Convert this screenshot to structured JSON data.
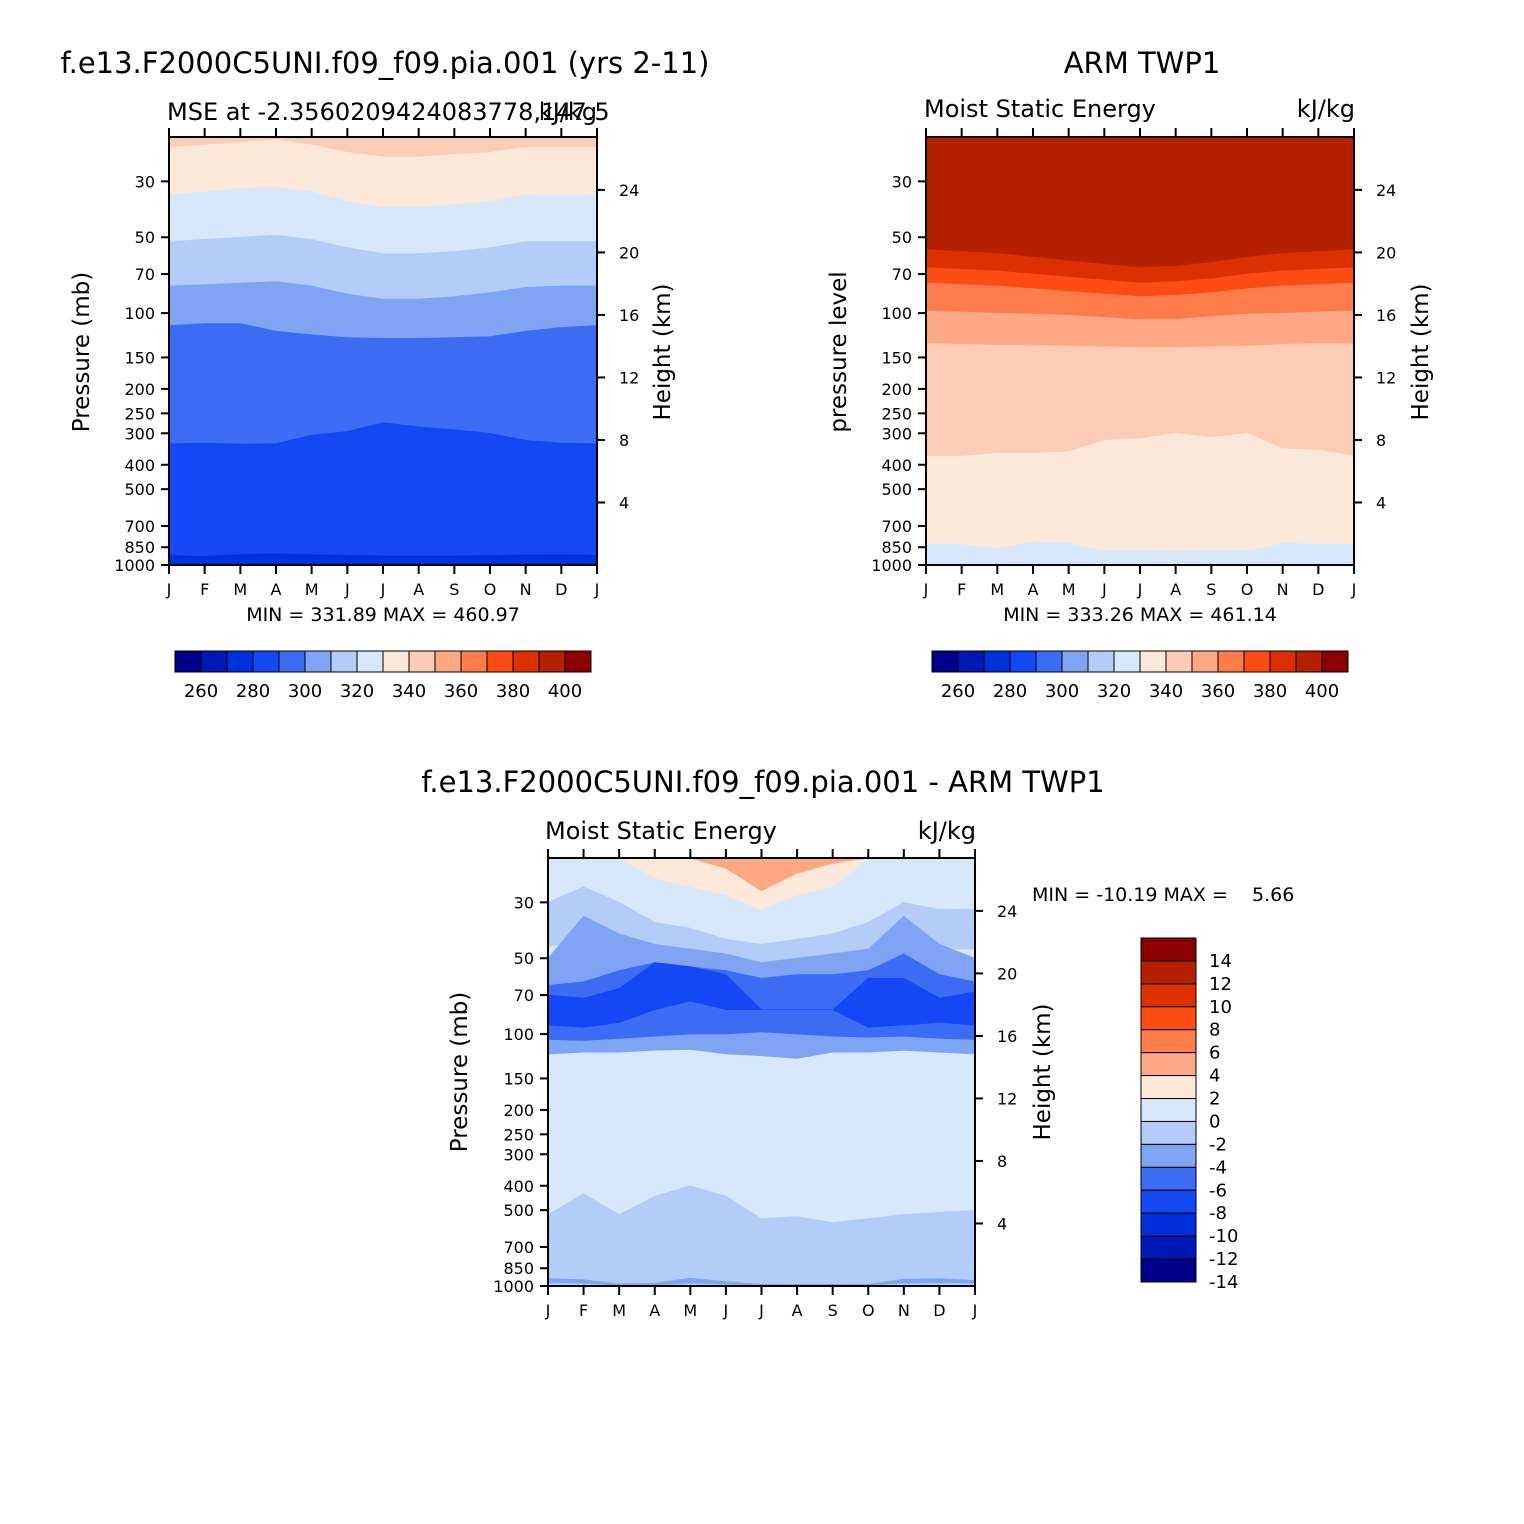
{
  "colors": {
    "abs": [
      "#00008b",
      "#0018b4",
      "#0030dc",
      "#1448f4",
      "#3c6cf4",
      "#80a4f4",
      "#b4ccf8",
      "#d8e8fc",
      "#fce8d8",
      "#fcccb4",
      "#fca884",
      "#fc7c4c",
      "#fc4c14",
      "#dc3000",
      "#b42000",
      "#8c0000"
    ],
    "diff": [
      "#00008b",
      "#0018b4",
      "#0030dc",
      "#1448f4",
      "#3c6cf4",
      "#80a4f4",
      "#b4ccf8",
      "#d8e8fc",
      "#fce8d8",
      "#fca884",
      "#fc7c4c",
      "#fc4c14",
      "#dc3000",
      "#b42000",
      "#8c0000"
    ]
  },
  "chart_data": [
    {
      "id": "model",
      "type": "heatmap",
      "title": "f.e13.F2000C5UNI.f09_f09.pia.001 (yrs 2-11)",
      "subtitle_left": "MSE at -2.3560209424083778,147.5",
      "subtitle_right": "kJ/kg",
      "ylabel": "Pressure (mb)",
      "y2label": "Height (km)",
      "months": [
        "J",
        "F",
        "M",
        "A",
        "M",
        "J",
        "J",
        "A",
        "S",
        "O",
        "N",
        "D",
        "J"
      ],
      "pressure_ticks": [
        "30",
        "50",
        "70",
        "100",
        "150",
        "200",
        "250",
        "300",
        "400",
        "500",
        "700",
        "850",
        "1000"
      ],
      "height_ticks": [
        "24",
        "20",
        "16",
        "12",
        "8",
        "4"
      ],
      "minmax": "MIN = 331.89  MAX = 460.97",
      "colorbar_labels": [
        "260",
        "280",
        "300",
        "320",
        "340",
        "360",
        "380",
        "400"
      ],
      "boundaries_hpa": [
        [
          1.5,
          1.5,
          1.4,
          1.3,
          1.4,
          1.6,
          1.8,
          1.8,
          1.7,
          1.6,
          1.5,
          1.5,
          1.5
        ],
        [
          2.5,
          2.5,
          2.4,
          2.3,
          2.4,
          2.6,
          2.8,
          2.8,
          2.7,
          2.6,
          2.5,
          2.5,
          2.5
        ],
        [
          3.7,
          3.7,
          3.6,
          3.5,
          3.6,
          3.8,
          4.0,
          4.0,
          3.9,
          3.8,
          3.7,
          3.7,
          3.7
        ],
        [
          5.5,
          5.5,
          5.4,
          5.3,
          5.4,
          5.6,
          5.8,
          5.8,
          5.7,
          5.6,
          5.5,
          5.5,
          5.5
        ],
        [
          8.5,
          8.4,
          8.3,
          8.2,
          8.4,
          8.7,
          9.0,
          9.0,
          8.9,
          8.7,
          8.5,
          8.5,
          8.5
        ],
        [
          14,
          13.8,
          13.6,
          13.4,
          13.8,
          14.5,
          15,
          15,
          14.8,
          14.5,
          14,
          14,
          14
        ],
        [
          22,
          21.5,
          21,
          20.5,
          21.5,
          23,
          24,
          24,
          23.5,
          23,
          22,
          22,
          22
        ],
        [
          34,
          33,
          32,
          31.5,
          33,
          36,
          38,
          38,
          37,
          36,
          34,
          34,
          34
        ],
        [
          52,
          51,
          50,
          49,
          51,
          55,
          58,
          58,
          57,
          55,
          52,
          52,
          52
        ],
        [
          78,
          77,
          76,
          75,
          78,
          84,
          88,
          88,
          86,
          83,
          79,
          78,
          78
        ],
        [
          112,
          110,
          110,
          118,
          122,
          125,
          126,
          126,
          125,
          124,
          118,
          114,
          112
        ],
        [
          330,
          328,
          331,
          330,
          305,
          295,
          272,
          283,
          290,
          300,
          320,
          328,
          330
        ],
        [
          915,
          925,
          908,
          903,
          910,
          915,
          920,
          920,
          920,
          918,
          912,
          910,
          915
        ]
      ],
      "boundary_colors": [
        10,
        14,
        13,
        12,
        11,
        10,
        9,
        8,
        7,
        6,
        5,
        4,
        3,
        2
      ]
    },
    {
      "id": "obs",
      "type": "heatmap",
      "title": "ARM TWP1",
      "subtitle_left": "Moist Static Energy",
      "subtitle_right": "kJ/kg",
      "ylabel": "pressure level",
      "y2label": "Height (km)",
      "months": [
        "J",
        "F",
        "M",
        "A",
        "M",
        "J",
        "J",
        "A",
        "S",
        "O",
        "N",
        "D",
        "J"
      ],
      "pressure_ticks": [
        "30",
        "50",
        "70",
        "100",
        "150",
        "200",
        "250",
        "300",
        "400",
        "500",
        "700",
        "850",
        "1000"
      ],
      "height_ticks": [
        "24",
        "20",
        "16",
        "12",
        "8",
        "4"
      ],
      "minmax": "MIN = 333.26  MAX = 461.14",
      "colorbar_labels": [
        "260",
        "280",
        "300",
        "320",
        "340",
        "360",
        "380",
        "400"
      ],
      "boundaries_hpa": [
        [
          56,
          57,
          58,
          60,
          62,
          64,
          66,
          65,
          63,
          60,
          58,
          57,
          56
        ],
        [
          66,
          67,
          68,
          70,
          72,
          74,
          76,
          75,
          73,
          70,
          68,
          67,
          66
        ],
        [
          76,
          77,
          78,
          80,
          82,
          84,
          86,
          85,
          83,
          80,
          78,
          77,
          76
        ],
        [
          98,
          99,
          100,
          101,
          102,
          104,
          106,
          106,
          103,
          101,
          100,
          99,
          98
        ],
        [
          132,
          133,
          134,
          134,
          135,
          136,
          137,
          137,
          136,
          135,
          133,
          132,
          132
        ],
        [
          370,
          370,
          360,
          360,
          355,
          320,
          315,
          300,
          312,
          300,
          345,
          350,
          370
        ],
        [
          825,
          830,
          860,
          810,
          820,
          880,
          880,
          885,
          880,
          880,
          820,
          825,
          825
        ]
      ],
      "boundary_colors": [
        14,
        13,
        12,
        11,
        10,
        9,
        8,
        7
      ]
    },
    {
      "id": "diff",
      "type": "heatmap",
      "title": "f.e13.F2000C5UNI.f09_f09.pia.001 - ARM TWP1",
      "subtitle_left": "Moist Static Energy",
      "subtitle_right": "kJ/kg",
      "ylabel": "Pressure (mb)",
      "y2label": "Height (km)",
      "months": [
        "J",
        "F",
        "M",
        "A",
        "M",
        "J",
        "J",
        "A",
        "S",
        "O",
        "N",
        "D",
        "J"
      ],
      "pressure_ticks": [
        "30",
        "50",
        "70",
        "100",
        "150",
        "200",
        "250",
        "300",
        "400",
        "500",
        "700",
        "850",
        "1000"
      ],
      "height_ticks": [
        "24",
        "20",
        "16",
        "12",
        "8",
        "4"
      ],
      "minmax": "MIN = -10.19 MAX =    5.66",
      "colorbar_labels": [
        "14",
        "12",
        "10",
        "8",
        "6",
        "4",
        "2",
        "0",
        "-2",
        "-4",
        "-6",
        "-8",
        "-10",
        "-12",
        "-14"
      ],
      "bands": [
        {
          "color": 8,
          "top": [
            20,
            20,
            20,
            20,
            20,
            20,
            20,
            20,
            20,
            20,
            20,
            20,
            20
          ],
          "bot": [
            20,
            20,
            20,
            24,
            26,
            28,
            32,
            28,
            26,
            20,
            20,
            20,
            20
          ]
        },
        {
          "color": 9,
          "top": [
            20,
            20,
            20,
            20,
            20,
            20,
            20,
            20,
            20,
            20,
            20,
            20,
            20
          ],
          "bot": [
            20,
            20,
            20,
            20,
            20,
            22,
            27,
            23,
            21,
            20,
            20,
            20,
            20
          ]
        },
        {
          "color": 6,
          "top": [
            30,
            26,
            30,
            36,
            38,
            42,
            44,
            42,
            40,
            36,
            30,
            32,
            32
          ],
          "bot": [
            45,
            42,
            46,
            52,
            54,
            58,
            56,
            54,
            54,
            50,
            44,
            46,
            46
          ]
        },
        {
          "color": 5,
          "top": [
            50,
            34,
            40,
            44,
            46,
            48,
            52,
            50,
            48,
            46,
            34,
            44,
            50
          ],
          "bot": [
            120,
            118,
            118,
            116,
            115,
            120,
            122,
            125,
            118,
            118,
            116,
            118,
            120
          ]
        },
        {
          "color": 4,
          "top": [
            64,
            62,
            56,
            52,
            54,
            56,
            60,
            58,
            58,
            56,
            48,
            58,
            62
          ],
          "bot": [
            105,
            106,
            104,
            102,
            100,
            100,
            98,
            100,
            102,
            103,
            102,
            104,
            105
          ]
        },
        {
          "color": 3,
          "top": [
            70,
            72,
            66,
            52,
            54,
            58,
            80,
            80,
            80,
            60,
            60,
            72,
            68
          ],
          "bot": [
            92,
            94,
            90,
            80,
            74,
            80,
            80,
            80,
            80,
            94,
            92,
            90,
            92
          ]
        },
        {
          "color": 6,
          "top": [
            520,
            430,
            520,
            440,
            400,
            440,
            540,
            530,
            560,
            540,
            520,
            510,
            500
          ],
          "bot": [
            1000,
            1000,
            1000,
            1000,
            1000,
            1000,
            1000,
            1000,
            1000,
            1000,
            1000,
            1000,
            1000
          ]
        },
        {
          "color": 5,
          "top": [
            935,
            945,
            980,
            975,
            930,
            960,
            985,
            985,
            985,
            985,
            940,
            935,
            950
          ],
          "bot": [
            970,
            975,
            995,
            990,
            975,
            985,
            990,
            990,
            990,
            990,
            975,
            970,
            975
          ]
        }
      ]
    }
  ]
}
